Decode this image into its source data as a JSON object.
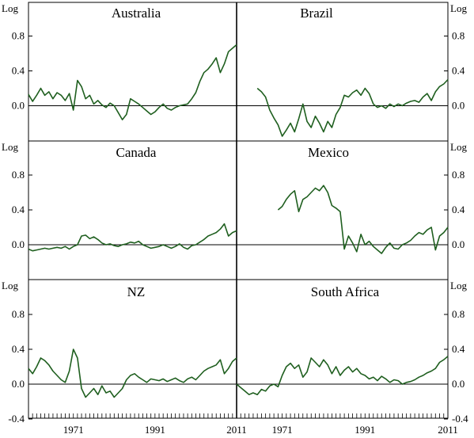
{
  "chart_data": {
    "type": "line",
    "unit_label": "Log",
    "x_range": [
      1960,
      2011
    ],
    "x_tick_labels": [
      "1971",
      "1991",
      "2011"
    ],
    "y_tick_labels": {
      "top": [
        "0.8",
        "0.4",
        "0.0"
      ],
      "bottom": [
        "0.8",
        "0.4",
        "0.0",
        "-0.4"
      ]
    },
    "line_color": "#1f5f1f",
    "panels": [
      {
        "title": "Australia",
        "ylim": [
          -0.4,
          1.0
        ],
        "x": [
          1960,
          1961,
          1962,
          1963,
          1964,
          1965,
          1966,
          1967,
          1968,
          1969,
          1970,
          1971,
          1972,
          1973,
          1974,
          1975,
          1976,
          1977,
          1978,
          1979,
          1980,
          1981,
          1982,
          1983,
          1984,
          1985,
          1986,
          1987,
          1988,
          1989,
          1990,
          1991,
          1992,
          1993,
          1994,
          1995,
          1996,
          1997,
          1998,
          1999,
          2000,
          2001,
          2002,
          2003,
          2004,
          2005,
          2006,
          2007,
          2008,
          2009,
          2010,
          2011
        ],
        "y": [
          0.13,
          0.05,
          0.12,
          0.2,
          0.12,
          0.16,
          0.08,
          0.15,
          0.12,
          0.06,
          0.14,
          -0.05,
          0.29,
          0.22,
          0.08,
          0.12,
          0.02,
          0.06,
          0.01,
          -0.02,
          0.03,
          0.0,
          -0.08,
          -0.16,
          -0.1,
          0.08,
          0.05,
          0.02,
          -0.02,
          -0.06,
          -0.1,
          -0.07,
          -0.02,
          0.02,
          -0.03,
          -0.05,
          -0.02,
          0.0,
          0.01,
          0.02,
          0.08,
          0.15,
          0.28,
          0.38,
          0.42,
          0.48,
          0.55,
          0.38,
          0.48,
          0.62,
          0.66,
          0.7
        ]
      },
      {
        "title": "Brazil",
        "ylim": [
          -0.4,
          1.0
        ],
        "x": [
          1965,
          1966,
          1967,
          1968,
          1969,
          1970,
          1971,
          1972,
          1973,
          1974,
          1975,
          1976,
          1977,
          1978,
          1979,
          1980,
          1981,
          1982,
          1983,
          1984,
          1985,
          1986,
          1987,
          1988,
          1989,
          1990,
          1991,
          1992,
          1993,
          1994,
          1995,
          1996,
          1997,
          1998,
          1999,
          2000,
          2001,
          2002,
          2003,
          2004,
          2005,
          2006,
          2007,
          2008,
          2009,
          2010,
          2011
        ],
        "y": [
          0.2,
          0.16,
          0.1,
          -0.05,
          -0.14,
          -0.22,
          -0.35,
          -0.28,
          -0.2,
          -0.3,
          -0.15,
          0.02,
          -0.18,
          -0.25,
          -0.12,
          -0.2,
          -0.3,
          -0.18,
          -0.25,
          -0.1,
          -0.02,
          0.12,
          0.1,
          0.15,
          0.18,
          0.12,
          0.2,
          0.14,
          0.02,
          -0.02,
          0.0,
          -0.03,
          0.02,
          -0.01,
          0.02,
          0.0,
          0.03,
          0.05,
          0.06,
          0.04,
          0.1,
          0.14,
          0.06,
          0.16,
          0.22,
          0.25,
          0.3
        ]
      },
      {
        "title": "Canada",
        "ylim": [
          -0.4,
          1.0
        ],
        "x": [
          1960,
          1961,
          1962,
          1963,
          1964,
          1965,
          1966,
          1967,
          1968,
          1969,
          1970,
          1971,
          1972,
          1973,
          1974,
          1975,
          1976,
          1977,
          1978,
          1979,
          1980,
          1981,
          1982,
          1983,
          1984,
          1985,
          1986,
          1987,
          1988,
          1989,
          1990,
          1991,
          1992,
          1993,
          1994,
          1995,
          1996,
          1997,
          1998,
          1999,
          2000,
          2001,
          2002,
          2003,
          2004,
          2005,
          2006,
          2007,
          2008,
          2009,
          2010,
          2011
        ],
        "y": [
          -0.05,
          -0.07,
          -0.06,
          -0.05,
          -0.04,
          -0.05,
          -0.04,
          -0.03,
          -0.04,
          -0.02,
          -0.05,
          -0.02,
          0.0,
          0.1,
          0.11,
          0.07,
          0.09,
          0.06,
          0.02,
          0.0,
          0.01,
          -0.01,
          -0.02,
          0.0,
          0.01,
          0.03,
          0.02,
          0.04,
          0.0,
          -0.02,
          -0.04,
          -0.03,
          -0.02,
          0.0,
          -0.02,
          -0.04,
          -0.02,
          0.01,
          -0.03,
          -0.05,
          -0.01,
          0.0,
          0.03,
          0.06,
          0.1,
          0.12,
          0.14,
          0.18,
          0.24,
          0.1,
          0.14,
          0.16
        ]
      },
      {
        "title": "Mexico",
        "ylim": [
          -0.4,
          1.0
        ],
        "x": [
          1970,
          1971,
          1972,
          1973,
          1974,
          1975,
          1976,
          1977,
          1978,
          1979,
          1980,
          1981,
          1982,
          1983,
          1984,
          1985,
          1986,
          1987,
          1988,
          1989,
          1990,
          1991,
          1992,
          1993,
          1994,
          1995,
          1996,
          1997,
          1998,
          1999,
          2000,
          2001,
          2002,
          2003,
          2004,
          2005,
          2006,
          2007,
          2008,
          2009,
          2010,
          2011
        ],
        "y": [
          0.4,
          0.44,
          0.52,
          0.58,
          0.62,
          0.38,
          0.52,
          0.55,
          0.6,
          0.65,
          0.62,
          0.68,
          0.6,
          0.45,
          0.42,
          0.38,
          -0.05,
          0.1,
          0.02,
          -0.08,
          0.12,
          0.0,
          0.04,
          -0.02,
          -0.06,
          -0.1,
          -0.03,
          0.02,
          -0.04,
          -0.05,
          0.0,
          0.02,
          0.05,
          0.1,
          0.14,
          0.12,
          0.17,
          0.2,
          -0.06,
          0.1,
          0.14,
          0.2
        ]
      },
      {
        "title": "NZ",
        "ylim": [
          -0.4,
          1.0
        ],
        "x": [
          1960,
          1961,
          1962,
          1963,
          1964,
          1965,
          1966,
          1967,
          1968,
          1969,
          1970,
          1971,
          1972,
          1973,
          1974,
          1975,
          1976,
          1977,
          1978,
          1979,
          1980,
          1981,
          1982,
          1983,
          1984,
          1985,
          1986,
          1987,
          1988,
          1989,
          1990,
          1991,
          1992,
          1993,
          1994,
          1995,
          1996,
          1997,
          1998,
          1999,
          2000,
          2001,
          2002,
          2003,
          2004,
          2005,
          2006,
          2007,
          2008,
          2009,
          2010,
          2011
        ],
        "y": [
          0.18,
          0.12,
          0.2,
          0.3,
          0.27,
          0.22,
          0.15,
          0.1,
          0.05,
          0.02,
          0.15,
          0.4,
          0.3,
          -0.05,
          -0.15,
          -0.1,
          -0.05,
          -0.12,
          -0.02,
          -0.1,
          -0.08,
          -0.15,
          -0.1,
          -0.05,
          0.05,
          0.1,
          0.12,
          0.08,
          0.05,
          0.02,
          0.06,
          0.05,
          0.04,
          0.06,
          0.03,
          0.05,
          0.07,
          0.04,
          0.02,
          0.06,
          0.08,
          0.05,
          0.1,
          0.15,
          0.18,
          0.2,
          0.22,
          0.28,
          0.12,
          0.18,
          0.26,
          0.3
        ]
      },
      {
        "title": "South Africa",
        "ylim": [
          -0.4,
          1.0
        ],
        "x": [
          1960,
          1961,
          1962,
          1963,
          1964,
          1965,
          1966,
          1967,
          1968,
          1969,
          1970,
          1971,
          1972,
          1973,
          1974,
          1975,
          1976,
          1977,
          1978,
          1979,
          1980,
          1981,
          1982,
          1983,
          1984,
          1985,
          1986,
          1987,
          1988,
          1989,
          1990,
          1991,
          1992,
          1993,
          1994,
          1995,
          1996,
          1997,
          1998,
          1999,
          2000,
          2001,
          2002,
          2003,
          2004,
          2005,
          2006,
          2007,
          2008,
          2009,
          2010,
          2011
        ],
        "y": [
          0.0,
          -0.04,
          -0.08,
          -0.12,
          -0.1,
          -0.12,
          -0.06,
          -0.08,
          -0.02,
          0.0,
          -0.03,
          0.1,
          0.2,
          0.24,
          0.18,
          0.22,
          0.08,
          0.14,
          0.3,
          0.25,
          0.2,
          0.28,
          0.22,
          0.12,
          0.2,
          0.1,
          0.16,
          0.2,
          0.14,
          0.18,
          0.12,
          0.1,
          0.06,
          0.08,
          0.04,
          0.09,
          0.06,
          0.02,
          0.05,
          0.04,
          0.0,
          0.02,
          0.03,
          0.05,
          0.08,
          0.1,
          0.13,
          0.15,
          0.18,
          0.25,
          0.28,
          0.32
        ]
      }
    ]
  }
}
